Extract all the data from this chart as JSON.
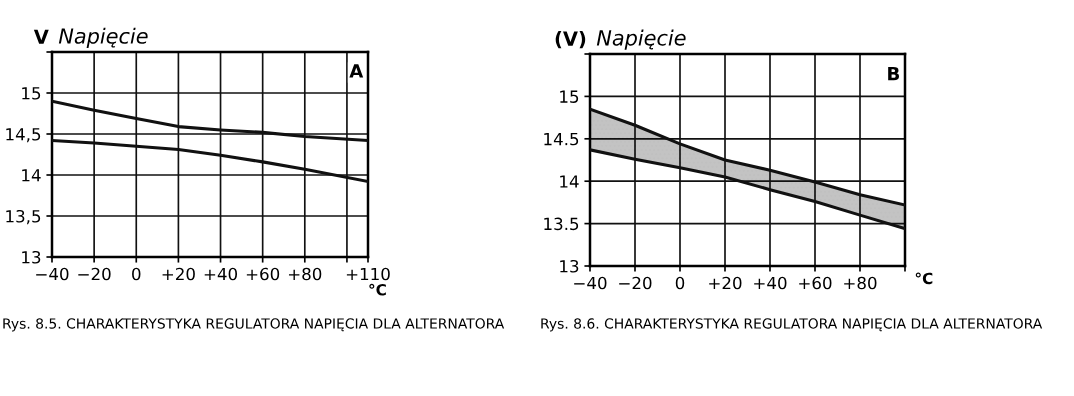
{
  "chart_data": [
    {
      "type": "line",
      "title": "Napięcie",
      "ylabel": "V",
      "xlabel": "°C",
      "x": [
        -40,
        -20,
        0,
        20,
        40,
        60,
        80,
        110
      ],
      "series": [
        {
          "color": "#111111",
          "values": [
            14.9,
            14.79,
            14.69,
            14.59,
            14.55,
            14.52,
            14.47,
            14.42
          ]
        },
        {
          "color": "#111111",
          "values": [
            14.42,
            14.39,
            14.35,
            14.31,
            14.24,
            14.16,
            14.07,
            13.92
          ]
        }
      ],
      "xlim": [
        -40,
        110
      ],
      "xticks": [
        {
          "value": -40,
          "label": "−40"
        },
        {
          "value": -20,
          "label": "−20"
        },
        0,
        {
          "value": 20,
          "label": "+20"
        },
        {
          "value": 40,
          "label": "+40"
        },
        {
          "value": 60,
          "label": "+60"
        },
        {
          "value": 80,
          "label": "+80"
        },
        {
          "value": 100,
          "label": null
        },
        {
          "value": 110,
          "label": "+110"
        }
      ],
      "ylim": [
        13,
        15.5
      ],
      "yticks": [
        13,
        {
          "value": 13.5,
          "label": "13,5"
        },
        14,
        {
          "value": 14.5,
          "label": "14,5"
        },
        15,
        {
          "value": 15.5,
          "label": null
        }
      ],
      "grid": true,
      "line_style": "solid",
      "marker": "none",
      "annotations": [
        "A",
        "Rys. 8.5. CHARAKTERYSTYKA REGULATORA NAPIĘCIA DLA ALTERNATORA"
      ]
    },
    {
      "type": "area",
      "title": "Napięcie",
      "ylabel": "(V)",
      "xlabel": "°C",
      "x": [
        -40,
        -20,
        0,
        20,
        40,
        60,
        80,
        100
      ],
      "series": [
        {
          "type": "line",
          "color": "#111111",
          "values": [
            14.85,
            14.66,
            14.44,
            14.25,
            14.13,
            13.99,
            13.84,
            13.72
          ]
        },
        {
          "type": "line",
          "color": "#111111",
          "values": [
            14.37,
            14.26,
            14.16,
            14.05,
            13.9,
            13.76,
            13.6,
            13.44
          ],
          "lower": [
            14.37,
            14.26,
            14.16,
            14.05,
            13.9,
            13.76,
            13.6,
            13.44
          ],
          "upper": [
            14.85,
            14.66,
            14.44,
            14.25,
            14.13,
            13.99,
            13.84,
            13.72
          ]
        }
      ],
      "xlim": [
        -40,
        100
      ],
      "xticks": [
        {
          "value": -40,
          "label": "−40"
        },
        {
          "value": -20,
          "label": "−20"
        },
        0,
        {
          "value": 20,
          "label": "+20"
        },
        {
          "value": 40,
          "label": "+40"
        },
        {
          "value": 60,
          "label": "+60"
        },
        {
          "value": 80,
          "label": "+80"
        },
        {
          "value": 100,
          "label": null
        }
      ],
      "ylim": [
        13,
        15.5
      ],
      "yticks": [
        13,
        13.5,
        14,
        14.5,
        15,
        {
          "value": 15.5,
          "label": null
        }
      ],
      "grid": true,
      "line_style": "solid",
      "marker": "none",
      "annotations": [
        "B",
        "Rys. 8.6. CHARAKTERYSTYKA REGULATORA NAPIĘCIA DLA ALTERNATORA"
      ]
    }
  ]
}
